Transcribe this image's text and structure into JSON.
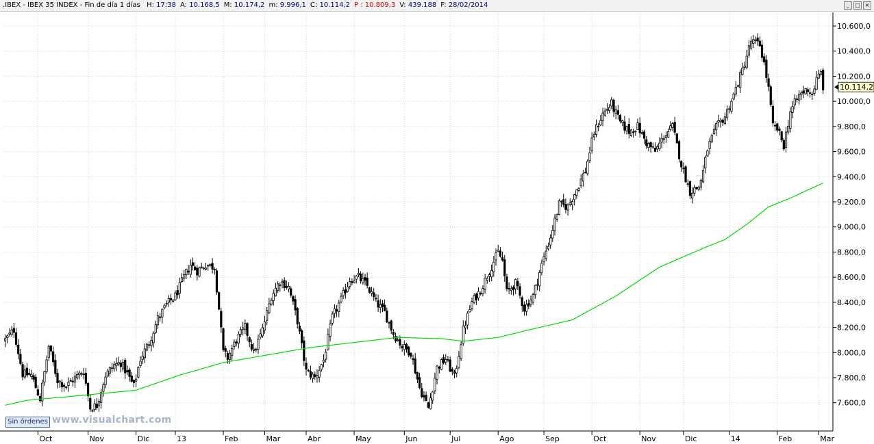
{
  "header": {
    "symbol": ".IBEX - IBEX 35 INDEX - Fin de día 1 días",
    "fields": [
      {
        "label": "H:",
        "value": "17:38"
      },
      {
        "label": "A:",
        "value": "10.168,5"
      },
      {
        "label": "M:",
        "value": "10.174,2"
      },
      {
        "label": "m:",
        "value": "9.996,1"
      },
      {
        "label": "C:",
        "value": "10.114,2"
      },
      {
        "label": "P :",
        "value": "10.809,3",
        "color": "#e00000"
      },
      {
        "label": "V:",
        "value": "439.188"
      },
      {
        "label": "F:",
        "value": "28/02/2014"
      }
    ],
    "window_buttons": [
      "_",
      "□",
      "×"
    ]
  },
  "footer": {
    "orders_label": "Sin órdenes",
    "watermark": "www.visualchart.com"
  },
  "colors": {
    "candle": "#000000",
    "moving_average": "#00dd00",
    "grid": "#d4d4d4",
    "last_price_box": "#ffffcc"
  },
  "chart_data": {
    "type": "candlestick",
    "y_axis": {
      "ticks": [
        7600,
        7800,
        8000,
        8200,
        8400,
        8600,
        8800,
        9000,
        9200,
        9400,
        9600,
        9800,
        10000,
        10200,
        10400,
        10600
      ],
      "tick_labels": [
        "7.600,0",
        "7.800,0",
        "8.000,0",
        "8.200,0",
        "8.400,0",
        "8.600,0",
        "8.800,0",
        "9.000,0",
        "9.200,0",
        "9.400,0",
        "9.600,0",
        "9.800,0",
        "10.000,0",
        "10.200,0",
        "10.400,0",
        "10.600,0"
      ],
      "range": [
        7375,
        10709
      ],
      "grid": true
    },
    "x_axis": {
      "labels": [
        "Oct",
        "Nov",
        "Dic",
        "13",
        "Feb",
        "Mar",
        "Abr",
        "May",
        "Jun",
        "Jul",
        "Ago",
        "Sep",
        "Oct",
        "Nov",
        "Dic",
        "14",
        "Feb",
        "Mar"
      ],
      "label_index": [
        15,
        38,
        60,
        78,
        100,
        119,
        138,
        160,
        183,
        204,
        226,
        247,
        269,
        291,
        311,
        332,
        354,
        373
      ],
      "total_slots": 380,
      "grid": true
    },
    "last_price_label": "10.114,2",
    "close_anchors": [
      [
        0,
        8100
      ],
      [
        4,
        8180
      ],
      [
        8,
        7830
      ],
      [
        12,
        7820
      ],
      [
        16,
        7630
      ],
      [
        20,
        8050
      ],
      [
        24,
        7780
      ],
      [
        28,
        7730
      ],
      [
        32,
        7800
      ],
      [
        36,
        7850
      ],
      [
        39,
        7560
      ],
      [
        42,
        7580
      ],
      [
        46,
        7820
      ],
      [
        50,
        7900
      ],
      [
        53,
        7920
      ],
      [
        56,
        7830
      ],
      [
        59,
        7730
      ],
      [
        62,
        7950
      ],
      [
        66,
        8080
      ],
      [
        70,
        8270
      ],
      [
        74,
        8380
      ],
      [
        78,
        8450
      ],
      [
        82,
        8600
      ],
      [
        85,
        8700
      ],
      [
        88,
        8650
      ],
      [
        92,
        8700
      ],
      [
        96,
        8680
      ],
      [
        98,
        8350
      ],
      [
        100,
        8000
      ],
      [
        102,
        7960
      ],
      [
        106,
        8100
      ],
      [
        110,
        8200
      ],
      [
        114,
        8000
      ],
      [
        118,
        8180
      ],
      [
        122,
        8450
      ],
      [
        126,
        8570
      ],
      [
        130,
        8520
      ],
      [
        134,
        8250
      ],
      [
        138,
        7850
      ],
      [
        142,
        7800
      ],
      [
        146,
        7940
      ],
      [
        150,
        8280
      ],
      [
        154,
        8420
      ],
      [
        158,
        8580
      ],
      [
        162,
        8600
      ],
      [
        166,
        8530
      ],
      [
        170,
        8400
      ],
      [
        174,
        8320
      ],
      [
        178,
        8150
      ],
      [
        182,
        8050
      ],
      [
        186,
        8000
      ],
      [
        190,
        7720
      ],
      [
        194,
        7560
      ],
      [
        198,
        7880
      ],
      [
        202,
        7950
      ],
      [
        206,
        7800
      ],
      [
        210,
        8180
      ],
      [
        214,
        8400
      ],
      [
        218,
        8500
      ],
      [
        222,
        8650
      ],
      [
        226,
        8800
      ],
      [
        228,
        8730
      ],
      [
        230,
        8480
      ],
      [
        234,
        8550
      ],
      [
        238,
        8350
      ],
      [
        242,
        8450
      ],
      [
        246,
        8700
      ],
      [
        250,
        8920
      ],
      [
        254,
        9180
      ],
      [
        258,
        9160
      ],
      [
        262,
        9300
      ],
      [
        266,
        9450
      ],
      [
        270,
        9750
      ],
      [
        274,
        9900
      ],
      [
        278,
        9980
      ],
      [
        282,
        9830
      ],
      [
        286,
        9760
      ],
      [
        290,
        9800
      ],
      [
        294,
        9670
      ],
      [
        298,
        9600
      ],
      [
        302,
        9720
      ],
      [
        306,
        9800
      ],
      [
        310,
        9500
      ],
      [
        314,
        9280
      ],
      [
        318,
        9320
      ],
      [
        320,
        9440
      ],
      [
        322,
        9620
      ],
      [
        326,
        9790
      ],
      [
        330,
        9880
      ],
      [
        334,
        10050
      ],
      [
        338,
        10250
      ],
      [
        342,
        10480
      ],
      [
        346,
        10450
      ],
      [
        348,
        10300
      ],
      [
        350,
        10100
      ],
      [
        352,
        9800
      ],
      [
        354,
        9780
      ],
      [
        357,
        9650
      ],
      [
        360,
        9920
      ],
      [
        364,
        10050
      ],
      [
        368,
        10100
      ],
      [
        370,
        10060
      ],
      [
        372,
        10170
      ],
      [
        374,
        10230
      ],
      [
        375,
        10114
      ]
    ],
    "moving_average_anchors": [
      [
        0,
        7580
      ],
      [
        10,
        7620
      ],
      [
        30,
        7650
      ],
      [
        60,
        7700
      ],
      [
        80,
        7820
      ],
      [
        100,
        7920
      ],
      [
        120,
        7980
      ],
      [
        140,
        8040
      ],
      [
        160,
        8080
      ],
      [
        180,
        8120
      ],
      [
        200,
        8110
      ],
      [
        210,
        8090
      ],
      [
        226,
        8120
      ],
      [
        240,
        8180
      ],
      [
        260,
        8260
      ],
      [
        280,
        8450
      ],
      [
        300,
        8680
      ],
      [
        320,
        8830
      ],
      [
        330,
        8900
      ],
      [
        340,
        9020
      ],
      [
        350,
        9160
      ],
      [
        360,
        9230
      ],
      [
        375,
        9350
      ]
    ]
  }
}
